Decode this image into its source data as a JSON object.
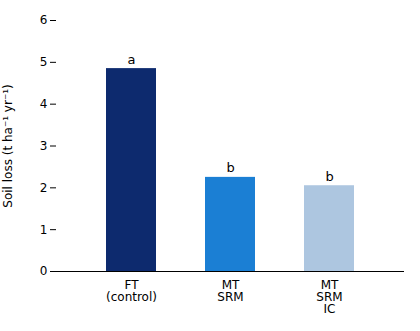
{
  "chart_data": {
    "type": "bar",
    "categories": [
      "FT\n(control)",
      "MT\nSRM",
      "MT\nSRM\nIC"
    ],
    "values": [
      4.85,
      2.25,
      2.05
    ],
    "colors": [
      "#0d2a6e",
      "#1b7fd4",
      "#adc6e0"
    ],
    "annotations": [
      "a",
      "b",
      "b"
    ],
    "ylabel": "Soil loss (t ha⁻¹ yr⁻¹)",
    "ylim": [
      0,
      6
    ],
    "yticks": [
      0,
      1,
      2,
      3,
      4,
      5,
      6
    ],
    "grid": false
  }
}
